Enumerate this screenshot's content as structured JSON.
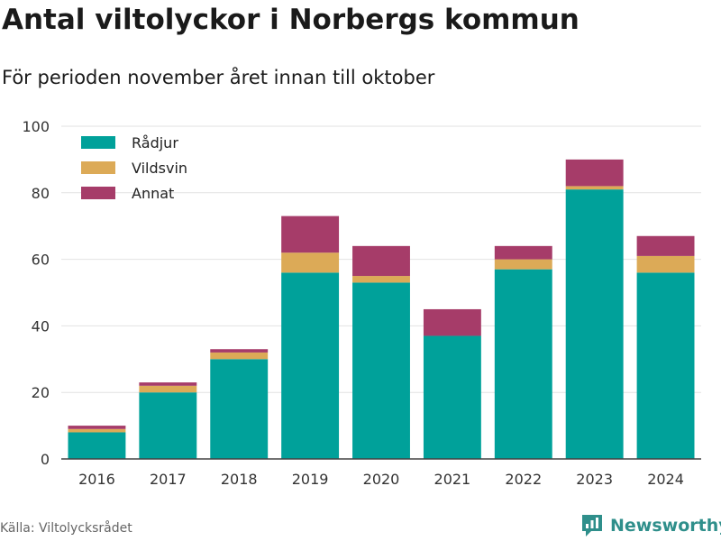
{
  "title": "Antal viltolyckor i Norbergs kommun",
  "subtitle": "För perioden november året innan till oktober",
  "source": "Källa: Viltolycksrådet",
  "brand": "Newsworthy",
  "chart_data": {
    "type": "bar",
    "stacked": true,
    "categories": [
      "2016",
      "2017",
      "2018",
      "2019",
      "2020",
      "2021",
      "2022",
      "2023",
      "2024"
    ],
    "series": [
      {
        "name": "Rådjur",
        "color": "#00a19a",
        "values": [
          8,
          20,
          30,
          56,
          53,
          37,
          57,
          81,
          56
        ]
      },
      {
        "name": "Vildsvin",
        "color": "#dcaa57",
        "values": [
          1,
          2,
          2,
          6,
          2,
          0,
          3,
          1,
          5
        ]
      },
      {
        "name": "Annat",
        "color": "#a63c69",
        "values": [
          1,
          1,
          1,
          11,
          9,
          8,
          4,
          8,
          6
        ]
      }
    ],
    "ylim": [
      0,
      100
    ],
    "yticks": [
      0,
      20,
      40,
      60,
      80,
      100
    ],
    "grid": true,
    "legend_position": "top-left"
  }
}
